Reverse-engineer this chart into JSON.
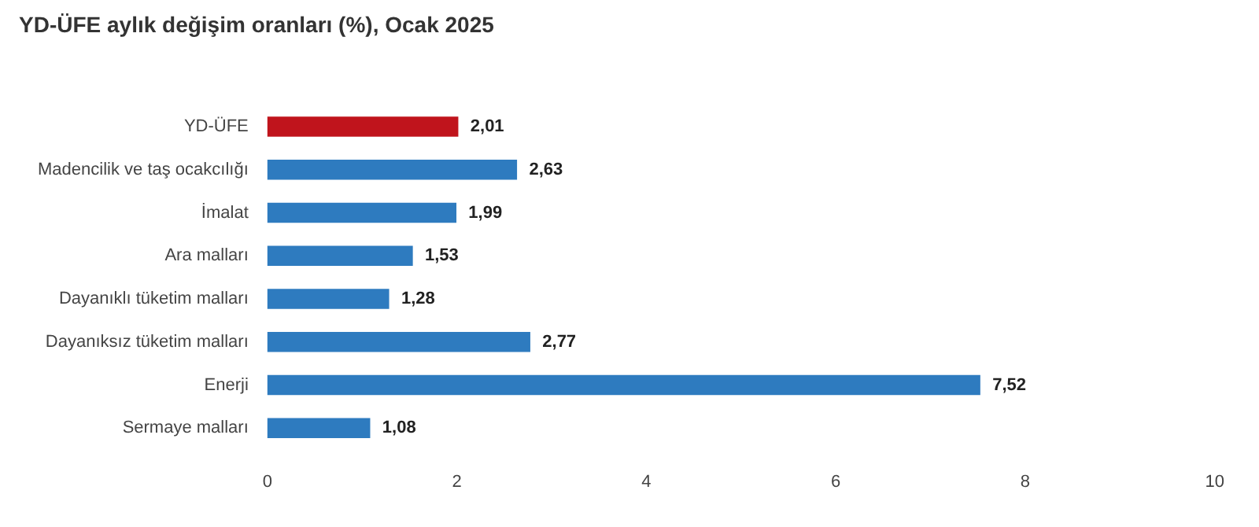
{
  "chart_data": {
    "type": "bar",
    "orientation": "horizontal",
    "title": "YD-ÜFE aylık değişim oranları (%), Ocak 2025",
    "categories": [
      "YD-ÜFE",
      "Madencilik ve taş ocakcılığı",
      "İmalat",
      "Ara malları",
      "Dayanıklı tüketim malları",
      "Dayanıksız tüketim malları",
      "Enerji",
      "Sermaye malları"
    ],
    "values": [
      2.01,
      2.63,
      1.99,
      1.53,
      1.28,
      2.77,
      7.52,
      1.08
    ],
    "colors": [
      "#c0141c",
      "#2e7bbf",
      "#2e7bbf",
      "#2e7bbf",
      "#2e7bbf",
      "#2e7bbf",
      "#2e7bbf",
      "#2e7bbf"
    ],
    "value_labels": [
      "2,01",
      "2,63",
      "1,99",
      "1,53",
      "1,28",
      "2,77",
      "7,52",
      "1,08"
    ],
    "xlim": [
      0,
      10
    ],
    "xticks": [
      0,
      2,
      4,
      6,
      8,
      10
    ],
    "grid": false
  }
}
